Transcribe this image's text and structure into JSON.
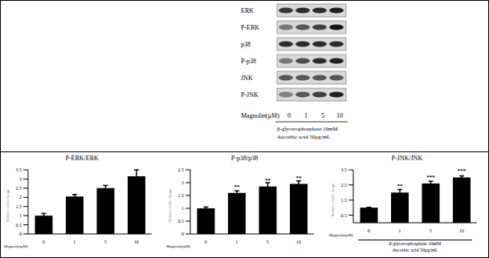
{
  "blot": {
    "rows": [
      "ERK",
      "P-ERK",
      "p38",
      "P-p38",
      "JNK",
      "P-JNK"
    ],
    "treatment_label": "Magnolin(μM)",
    "doses": [
      "0",
      "1",
      "5",
      "10"
    ],
    "conditions": [
      "β-glycerophosphate 10mM",
      "Ascorbic acid 50μg/mL"
    ]
  },
  "chart_data": [
    {
      "type": "bar",
      "title": "P-ERK/ERK",
      "ylabel": "Relative fold change",
      "xlabel": "Magnolin(μM)",
      "categories": [
        "0",
        "1",
        "5",
        "10"
      ],
      "values": [
        1.0,
        2.05,
        2.5,
        3.15
      ],
      "errors": [
        0.12,
        0.1,
        0.15,
        0.35
      ],
      "color": "#000000",
      "ylim": [
        0,
        3.5
      ],
      "yticks": [
        0,
        0.5,
        1,
        1.5,
        2,
        2.5,
        3,
        3.5
      ]
    },
    {
      "type": "bar",
      "title": "P-p38/p38",
      "ylabel": "Relative fold change",
      "xlabel": "Magnolin(μM)",
      "categories": [
        "0",
        "1",
        "5",
        "10"
      ],
      "values": [
        1.0,
        1.6,
        1.85,
        1.95
      ],
      "errors": [
        0.05,
        0.08,
        0.15,
        0.12
      ],
      "significance": [
        null,
        "**",
        "**",
        "**"
      ],
      "color": "#000000",
      "ylim": [
        0,
        2.5
      ],
      "yticks": [
        0,
        0.5,
        1,
        1.5,
        2,
        2.5
      ]
    },
    {
      "type": "bar",
      "title": "P-JNK/JNK",
      "ylabel": "Relative fold change",
      "xlabel": "Magnolin(μM)",
      "categories": [
        "0",
        "1",
        "5",
        "10"
      ],
      "values": [
        1.0,
        2.0,
        2.6,
        3.0
      ],
      "errors": [
        0.02,
        0.2,
        0.15,
        0.1
      ],
      "significance": [
        null,
        "**",
        "***",
        "***"
      ],
      "annotations": [
        "β-glycerophosphate 10mM",
        "Ascorbic acid 50μg/mL"
      ],
      "color": "#000000",
      "ylim": [
        0,
        3.5
      ],
      "yticks": [
        0,
        0.5,
        1,
        1.5,
        2,
        2.5,
        3,
        3.5
      ]
    }
  ]
}
